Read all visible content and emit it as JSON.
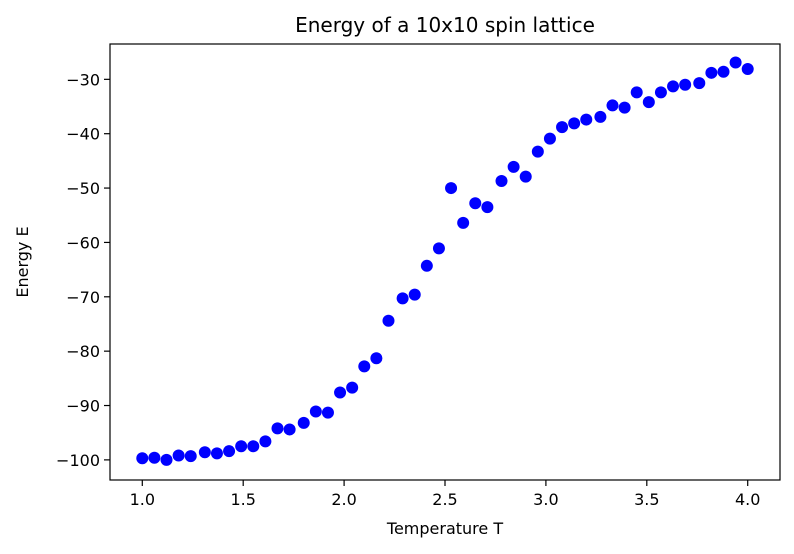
{
  "chart_data": {
    "type": "scatter",
    "title": "Energy of a 10x10 spin lattice",
    "xlabel": "Temperature T",
    "ylabel": "Energy E",
    "xlim": [
      0.84,
      4.16
    ],
    "ylim": [
      -103.7,
      -23.5
    ],
    "xticks": [
      1.0,
      1.5,
      2.0,
      2.5,
      3.0,
      3.5,
      4.0
    ],
    "xtick_labels": [
      "1.0",
      "1.5",
      "2.0",
      "2.5",
      "3.0",
      "3.5",
      "4.0"
    ],
    "yticks": [
      -100,
      -90,
      -80,
      -70,
      -60,
      -50,
      -40,
      -30
    ],
    "ytick_labels": [
      "−100",
      "−90",
      "−80",
      "−70",
      "−60",
      "−50",
      "−40",
      "−30"
    ],
    "grid": false,
    "marker_color": "#0000ff",
    "series": [
      {
        "x": [
          1.0,
          1.06,
          1.12,
          1.18,
          1.24,
          1.31,
          1.37,
          1.43,
          1.49,
          1.55,
          1.61,
          1.67,
          1.73,
          1.8,
          1.86,
          1.92,
          1.98,
          2.04,
          2.1,
          2.16,
          2.22,
          2.29,
          2.35,
          2.41,
          2.47,
          2.53,
          2.59,
          2.65,
          2.71,
          2.78,
          2.84,
          2.9,
          2.96,
          3.02,
          3.08,
          3.14,
          3.2,
          3.27,
          3.33,
          3.39,
          3.45,
          3.51,
          3.57,
          3.63,
          3.69,
          3.76,
          3.82,
          3.88,
          3.94,
          4.0
        ],
        "y": [
          -99.7,
          -99.6,
          -100.0,
          -99.2,
          -99.3,
          -98.6,
          -98.8,
          -98.4,
          -97.5,
          -97.5,
          -96.6,
          -94.2,
          -94.4,
          -93.2,
          -91.1,
          -91.3,
          -87.6,
          -86.7,
          -82.8,
          -81.3,
          -74.4,
          -70.3,
          -69.6,
          -64.3,
          -61.1,
          -50.0,
          -56.4,
          -52.8,
          -53.5,
          -48.7,
          -46.1,
          -47.9,
          -43.3,
          -40.9,
          -38.8,
          -38.1,
          -37.4,
          -36.9,
          -34.8,
          -35.2,
          -32.4,
          -34.2,
          -32.4,
          -31.3,
          -31.0,
          -30.7,
          -28.8,
          -28.6,
          -26.9,
          -28.1
        ]
      }
    ]
  }
}
